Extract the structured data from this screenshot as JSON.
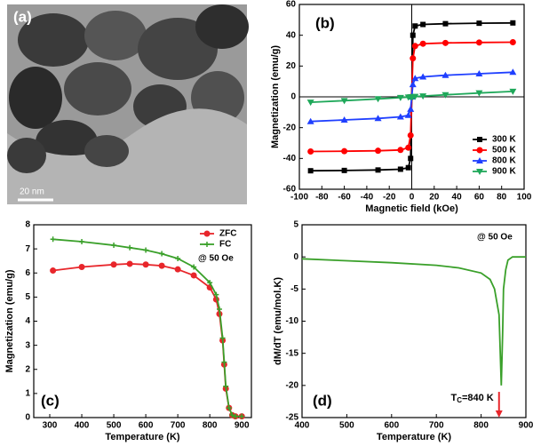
{
  "image": {
    "label": "(a)",
    "scale_bar": "20 nm"
  },
  "chart_data": [
    {
      "type": "line",
      "label": "(b)",
      "xlabel": "Magnetic field (kOe)",
      "ylabel": "Magnetization (emu/g)",
      "x": [
        -90,
        -60,
        -30,
        -10,
        -3,
        -1,
        0,
        1,
        3,
        10,
        30,
        60,
        90
      ],
      "series": [
        {
          "name": "300 K",
          "color": "#000000",
          "marker": "square",
          "values": [
            -48,
            -47.8,
            -47.5,
            -47,
            -46,
            -40,
            0,
            40,
            46,
            47,
            47.5,
            47.8,
            48
          ]
        },
        {
          "name": "500 K",
          "color": "#ff0000",
          "marker": "circle",
          "values": [
            -35.5,
            -35.3,
            -35,
            -34.5,
            -33,
            -25,
            0,
            25,
            33,
            34.5,
            35,
            35.3,
            35.5
          ]
        },
        {
          "name": "800 K",
          "color": "#1f3fff",
          "marker": "triangle",
          "values": [
            -16,
            -15,
            -14,
            -13,
            -12,
            -8,
            0,
            8,
            12,
            13,
            14,
            15,
            16
          ]
        },
        {
          "name": "900 K",
          "color": "#1fa85a",
          "marker": "triangle-down",
          "values": [
            -3.5,
            -2.5,
            -1.3,
            -0.5,
            -0.2,
            -0.1,
            0,
            0.1,
            0.2,
            0.5,
            1.3,
            2.5,
            3.5
          ]
        }
      ],
      "xlim": [
        -100,
        100
      ],
      "xticks": [
        -100,
        -80,
        -60,
        -40,
        -20,
        0,
        20,
        40,
        60,
        80,
        100
      ],
      "ylim": [
        -60,
        60
      ],
      "yticks": [
        -60,
        -40,
        -20,
        0,
        20,
        40,
        60
      ],
      "zero_lines": true,
      "legend": "lower right"
    },
    {
      "type": "line",
      "label": "(c)",
      "xlabel": "Temperature (K)",
      "ylabel": "Magnetization (emu/g)",
      "annotation": "@ 50 Oe",
      "x": [
        310,
        400,
        500,
        550,
        600,
        650,
        700,
        750,
        800,
        820,
        830,
        840,
        845,
        850,
        860,
        870,
        880,
        900
      ],
      "series": [
        {
          "name": "ZFC",
          "color": "#e8262b",
          "marker": "circle",
          "values": [
            6.1,
            6.25,
            6.35,
            6.38,
            6.35,
            6.3,
            6.15,
            5.9,
            5.4,
            4.9,
            4.3,
            3.2,
            2.2,
            1.2,
            0.4,
            0.1,
            0.05,
            0.05
          ]
        },
        {
          "name": "FC",
          "color": "#3aa02a",
          "marker": "star",
          "values": [
            7.4,
            7.3,
            7.15,
            7.05,
            6.95,
            6.8,
            6.6,
            6.25,
            5.6,
            5.1,
            4.5,
            3.3,
            2.3,
            1.3,
            0.4,
            0.1,
            0.05,
            0.05
          ]
        }
      ],
      "xlim": [
        250,
        930
      ],
      "xticks": [
        300,
        400,
        500,
        600,
        700,
        800,
        900
      ],
      "ylim": [
        0,
        8
      ],
      "yticks": [
        0,
        1,
        2,
        3,
        4,
        5,
        6,
        7,
        8
      ],
      "legend": "upper right"
    },
    {
      "type": "line",
      "label": "(d)",
      "xlabel": "Temperature (K)",
      "ylabel": "dM/dT (emu/mol.K)",
      "annotation": "@ 50 Oe",
      "tc_label": [
        "T",
        "C",
        "=840 K"
      ],
      "arrow": {
        "x": 840,
        "y": [
          -21,
          -25
        ],
        "color": "#e8262b"
      },
      "x": [
        400,
        500,
        600,
        700,
        750,
        800,
        820,
        830,
        840,
        845,
        848,
        850,
        855,
        860,
        870,
        900
      ],
      "series": [
        {
          "name": null,
          "color": "#3aa02a",
          "marker": null,
          "values": [
            -0.3,
            -0.6,
            -0.9,
            -1.3,
            -1.7,
            -2.5,
            -3.5,
            -5,
            -9,
            -20,
            -12,
            -5,
            -2,
            -0.5,
            0,
            0
          ]
        }
      ],
      "xlim": [
        400,
        900
      ],
      "xticks": [
        400,
        500,
        600,
        700,
        800,
        900
      ],
      "ylim": [
        -25,
        5
      ],
      "yticks": [
        -25,
        -20,
        -15,
        -10,
        -5,
        0,
        5
      ]
    }
  ]
}
